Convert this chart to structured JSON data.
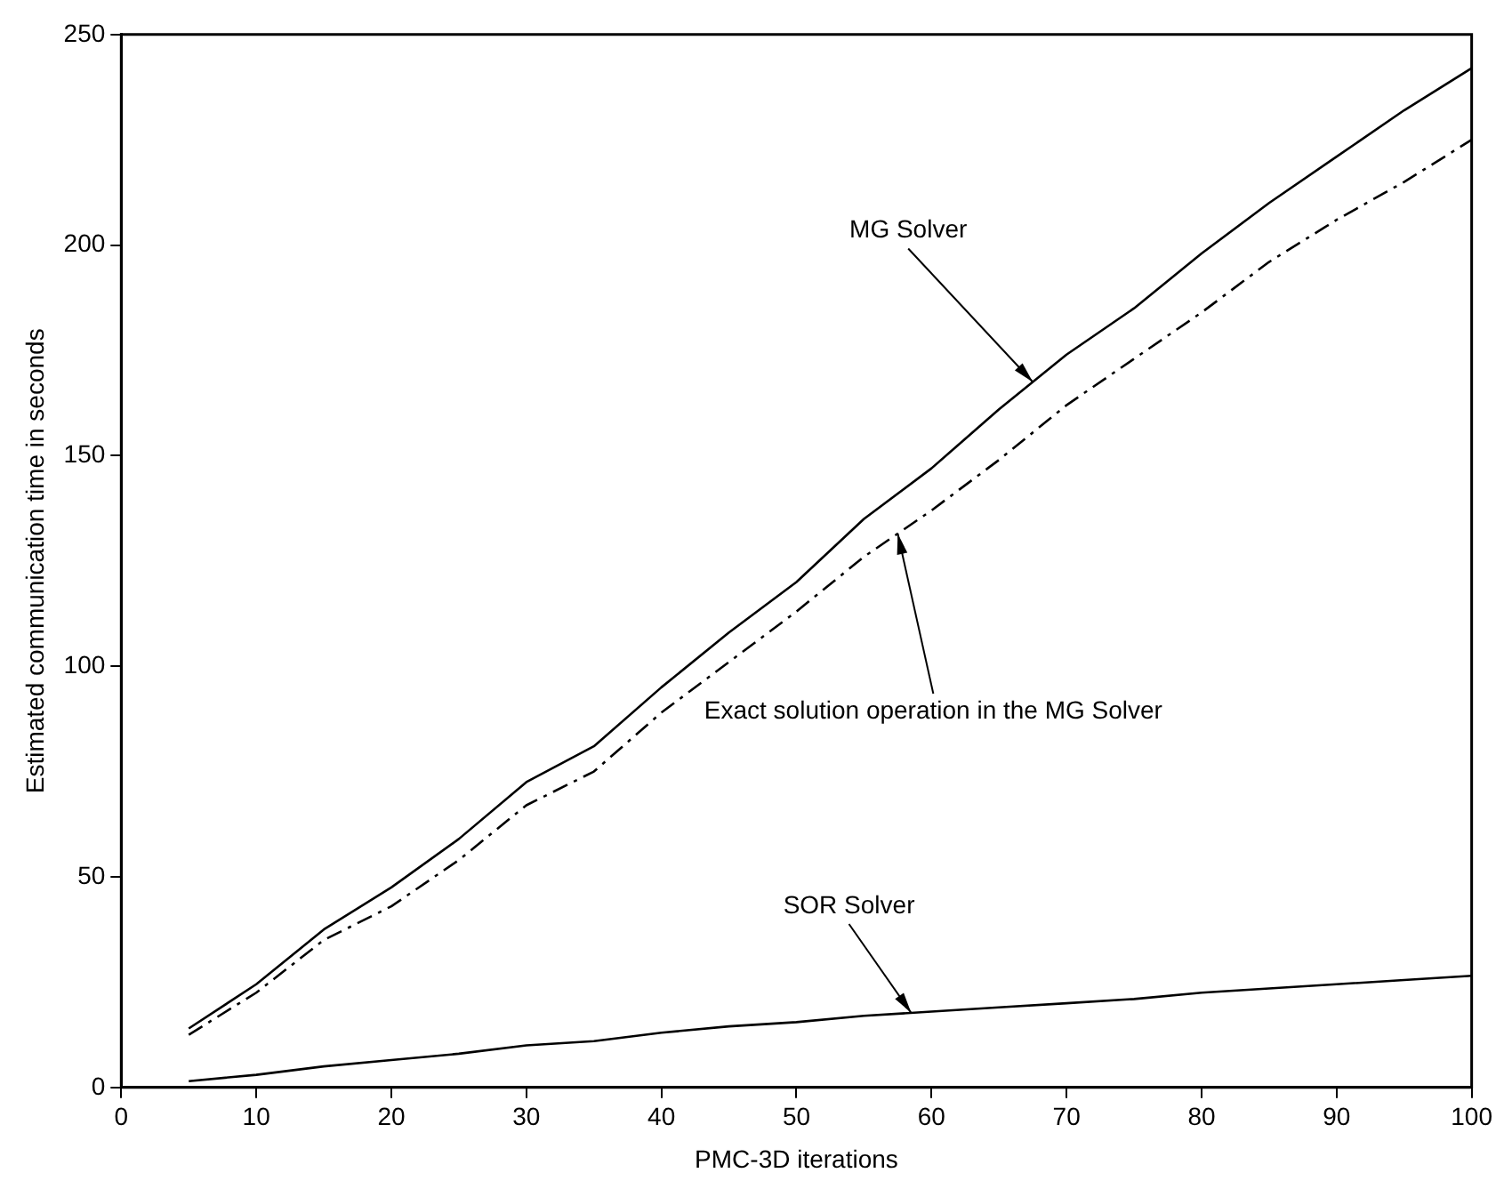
{
  "chart_data": {
    "type": "line",
    "xlabel": "PMC-3D iterations",
    "ylabel": "Estimated communication time in seconds",
    "x": [
      5,
      10,
      15,
      20,
      25,
      30,
      35,
      40,
      45,
      50,
      55,
      60,
      65,
      70,
      75,
      80,
      85,
      90,
      95,
      100
    ],
    "series": [
      {
        "color": "#000000",
        "line_style": "solid",
        "values": [
          14,
          24.5,
          37.5,
          47.5,
          59,
          72.5,
          81,
          95,
          108,
          120,
          135,
          147,
          161,
          174,
          185,
          198,
          210,
          221,
          232,
          242
        ]
      },
      {
        "color": "#000000",
        "line_style": "dashed",
        "values": [
          12.5,
          22.5,
          35,
          43,
          54,
          67,
          75,
          89,
          101,
          113,
          126,
          137,
          149,
          162,
          173,
          184,
          196,
          206,
          215,
          225
        ]
      },
      {
        "color": "#000000",
        "line_style": "solid",
        "values": [
          1.5,
          3,
          5,
          6.5,
          8,
          10,
          11,
          13,
          14.5,
          15.5,
          17,
          18,
          19,
          20,
          21,
          22.5,
          23.5,
          24.5,
          25.5,
          26.5
        ]
      }
    ],
    "annotations": [
      {
        "text": "MG Solver",
        "x": 67.5,
        "y": 167.5
      },
      {
        "text": "Exact solution operation in the MG Solver",
        "x": 57.5,
        "y": 131.5
      },
      {
        "text": "SOR Solver",
        "x": 58.5,
        "y": 17.7
      }
    ],
    "xlim": [
      0,
      100
    ],
    "xticks": [
      0,
      10,
      20,
      30,
      40,
      50,
      60,
      70,
      80,
      90,
      100
    ],
    "ylim": [
      0,
      250
    ],
    "yticks": [
      0,
      50,
      100,
      150,
      200,
      250
    ],
    "grid": false,
    "legend": false,
    "marker": "none"
  }
}
